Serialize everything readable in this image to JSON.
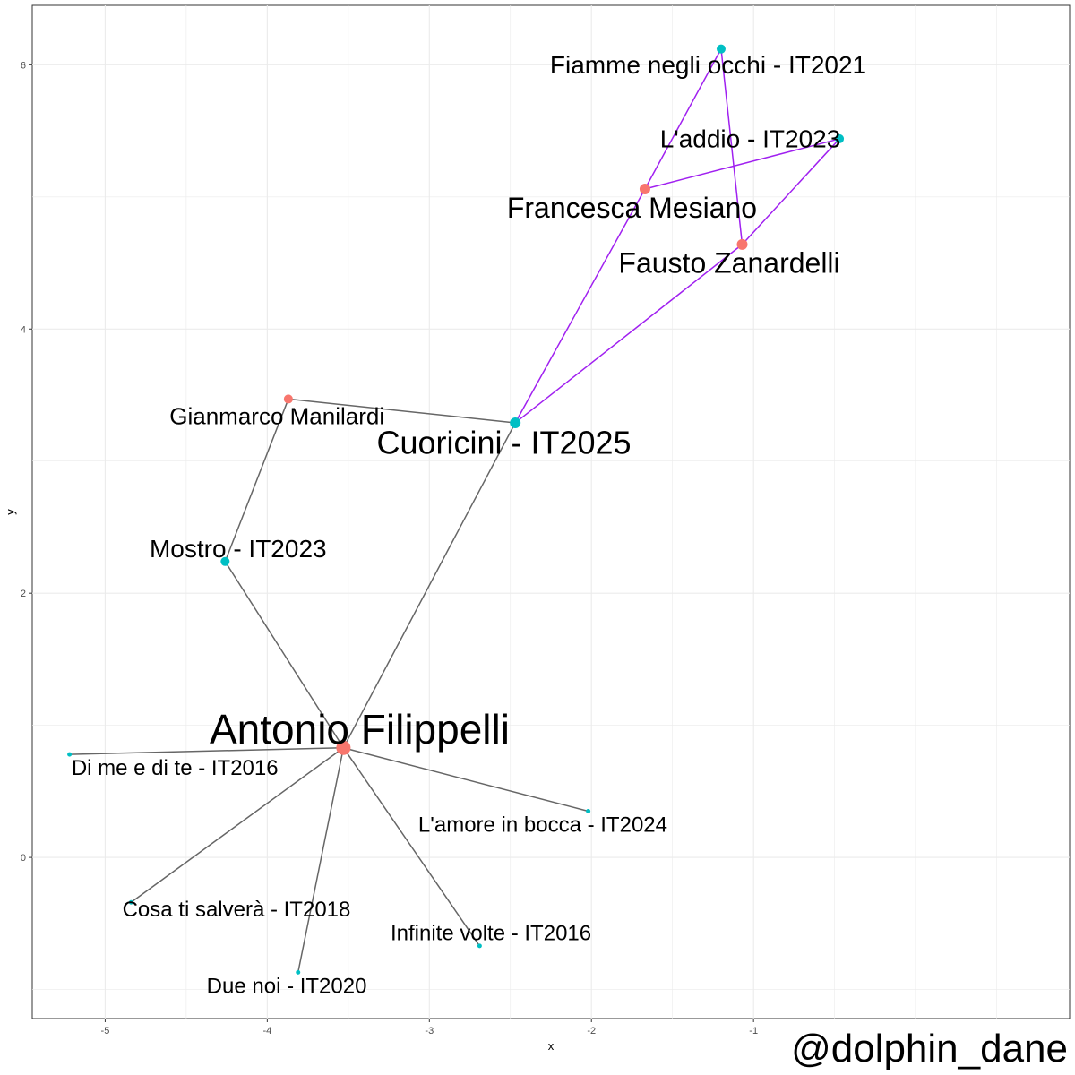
{
  "chart_data": {
    "type": "network",
    "xlabel": "x",
    "ylabel": "y",
    "xlim": [
      -5.45,
      0.95
    ],
    "ylim": [
      -1.22,
      6.45
    ],
    "x_ticks": [
      -5,
      -4,
      -3,
      -2,
      -1
    ],
    "y_ticks": [
      0,
      2,
      4,
      6
    ],
    "x_tick_labels": [
      "-5",
      "-4",
      "-3",
      "-2",
      "-1"
    ],
    "y_tick_labels": [
      "0",
      "2",
      "4",
      "6"
    ],
    "grid": true,
    "colors": {
      "artist": "#F8766D",
      "song": "#00BFC4",
      "edge_gray": "#666666",
      "edge_purple": "#A020F0",
      "grid": "#EBEBEB",
      "panel_border": "#333333"
    },
    "nodes": [
      {
        "id": "antonio",
        "label": "Antonio Filippelli",
        "x": -3.53,
        "y": 0.83,
        "kind": "artist",
        "size": 8,
        "font": 46,
        "ldx": 0.1,
        "ldy": 0.14
      },
      {
        "id": "gianmarco",
        "label": "Gianmarco Manilardi",
        "x": -3.87,
        "y": 3.47,
        "kind": "artist",
        "size": 5,
        "font": 26,
        "ldx": -0.07,
        "ldy": -0.13
      },
      {
        "id": "francesca",
        "label": "Francesca Mesiano",
        "x": -1.67,
        "y": 5.06,
        "kind": "artist",
        "size": 6,
        "font": 32,
        "ldx": -0.08,
        "ldy": -0.14
      },
      {
        "id": "fausto",
        "label": "Fausto Zanardelli",
        "x": -1.07,
        "y": 4.64,
        "kind": "artist",
        "size": 6,
        "font": 32,
        "ldx": -0.08,
        "ldy": -0.14
      },
      {
        "id": "cuoricini",
        "label": "Cuoricini - IT2025",
        "x": -2.47,
        "y": 3.29,
        "kind": "song",
        "size": 6,
        "font": 36,
        "ldx": -0.07,
        "ldy": -0.15
      },
      {
        "id": "mostro",
        "label": "Mostro - IT2023",
        "x": -4.26,
        "y": 2.24,
        "kind": "song",
        "size": 5,
        "font": 28,
        "ldx": 0.08,
        "ldy": 0.1
      },
      {
        "id": "fiamme",
        "label": "Fiamme negli occhi - IT2021",
        "x": -1.2,
        "y": 6.12,
        "kind": "song",
        "size": 5,
        "font": 28,
        "ldx": -0.08,
        "ldy": -0.12
      },
      {
        "id": "laddio",
        "label": "L'addio - IT2023",
        "x": -0.47,
        "y": 5.44,
        "kind": "song",
        "size": 5,
        "font": 28,
        "ldx": -0.55,
        "ldy": 0.0
      },
      {
        "id": "dime",
        "label": "Di me e di te - IT2016",
        "x": -5.22,
        "y": 0.78,
        "kind": "song",
        "size": 2.5,
        "font": 24,
        "ldx": 0.65,
        "ldy": -0.1
      },
      {
        "id": "amore",
        "label": "L'amore in bocca - IT2024",
        "x": -2.02,
        "y": 0.35,
        "kind": "song",
        "size": 2.5,
        "font": 24,
        "ldx": -0.28,
        "ldy": -0.1
      },
      {
        "id": "cosa",
        "label": "Cosa ti salverà - IT2018",
        "x": -4.84,
        "y": -0.34,
        "kind": "song",
        "size": 2.5,
        "font": 24,
        "ldx": 0.65,
        "ldy": -0.05
      },
      {
        "id": "infinite",
        "label": "Infinite volte - IT2016",
        "x": -2.69,
        "y": -0.67,
        "kind": "song",
        "size": 2.5,
        "font": 24,
        "ldx": 0.07,
        "ldy": 0.1
      },
      {
        "id": "duenoi",
        "label": "Due noi - IT2020",
        "x": -3.81,
        "y": -0.87,
        "kind": "song",
        "size": 2.5,
        "font": 24,
        "ldx": -0.07,
        "ldy": -0.1
      }
    ],
    "edges": [
      {
        "from": "antonio",
        "to": "dime",
        "color": "gray"
      },
      {
        "from": "antonio",
        "to": "amore",
        "color": "gray"
      },
      {
        "from": "antonio",
        "to": "cosa",
        "color": "gray"
      },
      {
        "from": "antonio",
        "to": "infinite",
        "color": "gray"
      },
      {
        "from": "antonio",
        "to": "duenoi",
        "color": "gray"
      },
      {
        "from": "antonio",
        "to": "mostro",
        "color": "gray"
      },
      {
        "from": "antonio",
        "to": "cuoricini",
        "color": "gray"
      },
      {
        "from": "mostro",
        "to": "gianmarco",
        "color": "gray"
      },
      {
        "from": "gianmarco",
        "to": "cuoricini",
        "color": "gray"
      },
      {
        "from": "cuoricini",
        "to": "francesca",
        "color": "purple"
      },
      {
        "from": "cuoricini",
        "to": "fausto",
        "color": "purple"
      },
      {
        "from": "francesca",
        "to": "fiamme",
        "color": "purple"
      },
      {
        "from": "francesca",
        "to": "laddio",
        "color": "purple"
      },
      {
        "from": "fausto",
        "to": "fiamme",
        "color": "purple"
      },
      {
        "from": "fausto",
        "to": "laddio",
        "color": "purple"
      }
    ]
  },
  "credit": "@dolphin_dane"
}
